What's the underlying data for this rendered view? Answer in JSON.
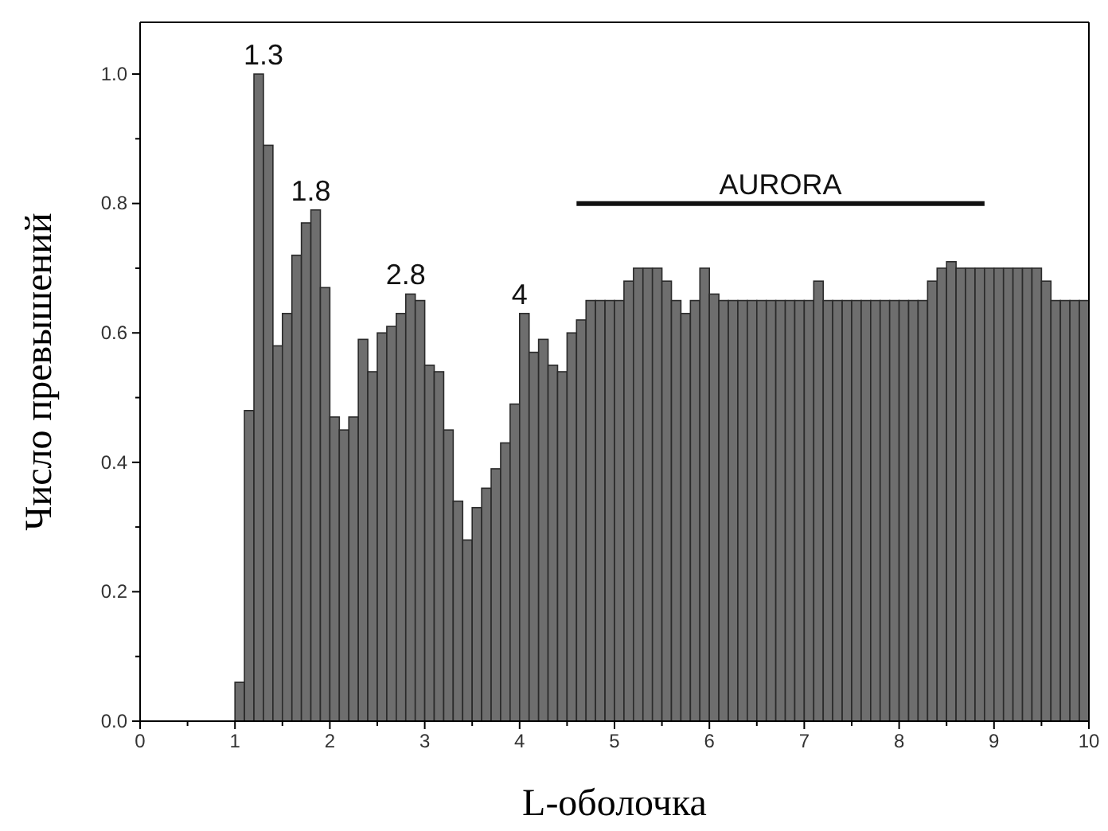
{
  "chart_data": {
    "type": "histogram",
    "xlabel": "L-оболочка",
    "ylabel": "Число превышений",
    "bins": [
      1.0,
      1.1,
      1.2,
      1.3,
      1.4,
      1.5,
      1.6,
      1.7,
      1.8,
      1.9,
      2.0,
      2.1,
      2.2,
      2.3,
      2.4,
      2.5,
      2.6,
      2.7,
      2.8,
      2.9,
      3.0,
      3.1,
      3.2,
      3.3,
      3.4,
      3.5,
      3.6,
      3.7,
      3.8,
      3.9,
      4.0,
      4.1,
      4.2,
      4.3,
      4.4,
      4.5,
      4.6,
      4.7,
      4.8,
      4.9,
      5.0,
      5.1,
      5.2,
      5.3,
      5.4,
      5.5,
      5.6,
      5.7,
      5.8,
      5.9,
      6.0,
      6.1,
      6.2,
      6.3,
      6.4,
      6.5,
      6.6,
      6.7,
      6.8,
      6.9,
      7.0,
      7.1,
      7.2,
      7.3,
      7.4,
      7.5,
      7.6,
      7.7,
      7.8,
      7.9,
      8.0,
      8.1,
      8.2,
      8.3,
      8.4,
      8.5,
      8.6,
      8.7,
      8.8,
      8.9,
      9.0,
      9.1,
      9.2,
      9.3,
      9.4,
      9.5,
      9.6,
      9.7,
      9.8,
      9.9,
      10.0
    ],
    "values": [
      0.06,
      0.48,
      1.0,
      0.89,
      0.58,
      0.63,
      0.72,
      0.77,
      0.79,
      0.67,
      0.47,
      0.45,
      0.47,
      0.59,
      0.54,
      0.6,
      0.61,
      0.63,
      0.66,
      0.65,
      0.55,
      0.54,
      0.45,
      0.34,
      0.28,
      0.33,
      0.36,
      0.39,
      0.43,
      0.49,
      0.63,
      0.57,
      0.59,
      0.55,
      0.54,
      0.6,
      0.62,
      0.65,
      0.65,
      0.65,
      0.65,
      0.68,
      0.7,
      0.7,
      0.7,
      0.68,
      0.65,
      0.63,
      0.65,
      0.7,
      0.66,
      0.65,
      0.65,
      0.65,
      0.65,
      0.65,
      0.65,
      0.65,
      0.65,
      0.65,
      0.65,
      0.68,
      0.65,
      0.65,
      0.65,
      0.65,
      0.65,
      0.65,
      0.65,
      0.65,
      0.65,
      0.65,
      0.65,
      0.68,
      0.7,
      0.71,
      0.7,
      0.7,
      0.7,
      0.7,
      0.7,
      0.7,
      0.7,
      0.7,
      0.7,
      0.68,
      0.65,
      0.65,
      0.65,
      0.65
    ],
    "color": "#6e6e6e",
    "xlim": [
      0,
      10
    ],
    "ylim": [
      0,
      1.08
    ],
    "xticks": [
      0,
      {
        "value": 0.5,
        "label": null
      },
      1,
      {
        "value": 1.5,
        "label": null
      },
      2,
      {
        "value": 2.5,
        "label": null
      },
      3,
      {
        "value": 3.5,
        "label": null
      },
      4,
      {
        "value": 4.5,
        "label": null
      },
      5,
      {
        "value": 5.5,
        "label": null
      },
      6,
      {
        "value": 6.5,
        "label": null
      },
      7,
      {
        "value": 7.5,
        "label": null
      },
      8,
      {
        "value": 8.5,
        "label": null
      },
      9,
      {
        "value": 9.5,
        "label": null
      },
      10
    ],
    "yticks": [
      {
        "value": 0,
        "label": "0.0"
      },
      {
        "value": 0.1,
        "label": null
      },
      {
        "value": 0.2,
        "label": "0.2"
      },
      {
        "value": 0.3,
        "label": null
      },
      {
        "value": 0.4,
        "label": "0.4"
      },
      {
        "value": 0.5,
        "label": null
      },
      {
        "value": 0.6,
        "label": "0.6"
      },
      {
        "value": 0.7,
        "label": null
      },
      {
        "value": 0.8,
        "label": "0.8"
      },
      {
        "value": 0.9,
        "label": null
      },
      {
        "value": 1.0,
        "label": "1.0"
      }
    ],
    "series": [
      {
        "type": "line",
        "x": [
          4.6,
          8.9
        ],
        "values": [
          0.8,
          0.8
        ],
        "color": "#111111"
      }
    ],
    "annotations": [
      {
        "text": "1.3",
        "x": 1.3,
        "y": 1.0
      },
      {
        "text": "1.8",
        "x": 1.8,
        "y": 0.79
      },
      {
        "text": "2.8",
        "x": 2.8,
        "y": 0.66
      },
      {
        "text": "4",
        "x": 4.0,
        "y": 0.63
      },
      {
        "text": "AURORA",
        "x": 6.75,
        "y": 0.8
      }
    ],
    "grid": false
  }
}
